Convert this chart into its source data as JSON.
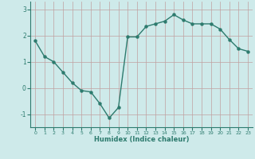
{
  "x": [
    0,
    1,
    2,
    3,
    4,
    5,
    6,
    7,
    8,
    9,
    10,
    11,
    12,
    13,
    14,
    15,
    16,
    17,
    18,
    19,
    20,
    21,
    22,
    23
  ],
  "y": [
    1.8,
    1.2,
    1.0,
    0.6,
    0.2,
    -0.1,
    -0.15,
    -0.6,
    -1.15,
    -0.75,
    1.95,
    1.95,
    2.35,
    2.45,
    2.55,
    2.8,
    2.6,
    2.45,
    2.45,
    2.45,
    2.25,
    1.85,
    1.5,
    1.4
  ],
  "line_color": "#2d7b6e",
  "bg_color": "#ceeaea",
  "grid_color": "#b0d8d8",
  "tick_color": "#2d7b6e",
  "xlabel": "Humidex (Indice chaleur)",
  "ylim": [
    -1.5,
    3.3
  ],
  "xlim": [
    -0.5,
    23.5
  ],
  "yticks": [
    -1,
    0,
    1,
    2,
    3
  ],
  "xticks": [
    0,
    1,
    2,
    3,
    4,
    5,
    6,
    7,
    8,
    9,
    10,
    11,
    12,
    13,
    14,
    15,
    16,
    17,
    18,
    19,
    20,
    21,
    22,
    23
  ]
}
